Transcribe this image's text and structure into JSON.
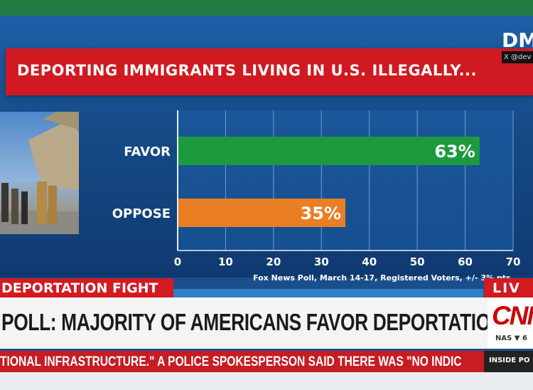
{
  "title": "DEPORTING IMMIGRANTS LIVING IN U.S. ILLEGALLY...",
  "logo_text": "DM",
  "handle": "X @dev",
  "chart_data": {
    "type": "bar",
    "orientation": "horizontal",
    "title": "DEPORTING IMMIGRANTS LIVING IN U.S. ILLEGALLY...",
    "categories": [
      "FAVOR",
      "OPPOSE"
    ],
    "values": [
      63,
      35
    ],
    "value_labels": [
      "63%",
      "35%"
    ],
    "bar_colors": [
      "#1e9a3e",
      "#e97f22"
    ],
    "xlim": [
      0,
      70
    ],
    "xticks": [
      "0",
      "10",
      "20",
      "30",
      "40",
      "50",
      "60",
      "70"
    ],
    "grid": true,
    "source": "Fox News Poll, March 14-17, Registered Voters, +/- 3% pts"
  },
  "lower_third": {
    "tag": "DEPORTATION FIGHT",
    "live": "LIV",
    "headline": "POLL: MAJORITY OF AMERICANS FAVOR DEPORTATIONS",
    "network": "CNN",
    "market": "NAS ▼ 6",
    "ticker": "TIONAL INFRASTRUCTURE.\" A POLICE SPOKESPERSON SAID THERE WAS \"NO INDIC",
    "inside": "INSIDE PO"
  },
  "colors": {
    "accent_red": "#d41a21",
    "favor": "#1e9a3e",
    "oppose": "#e97f22",
    "panel_blue": "#1a5aa0"
  }
}
